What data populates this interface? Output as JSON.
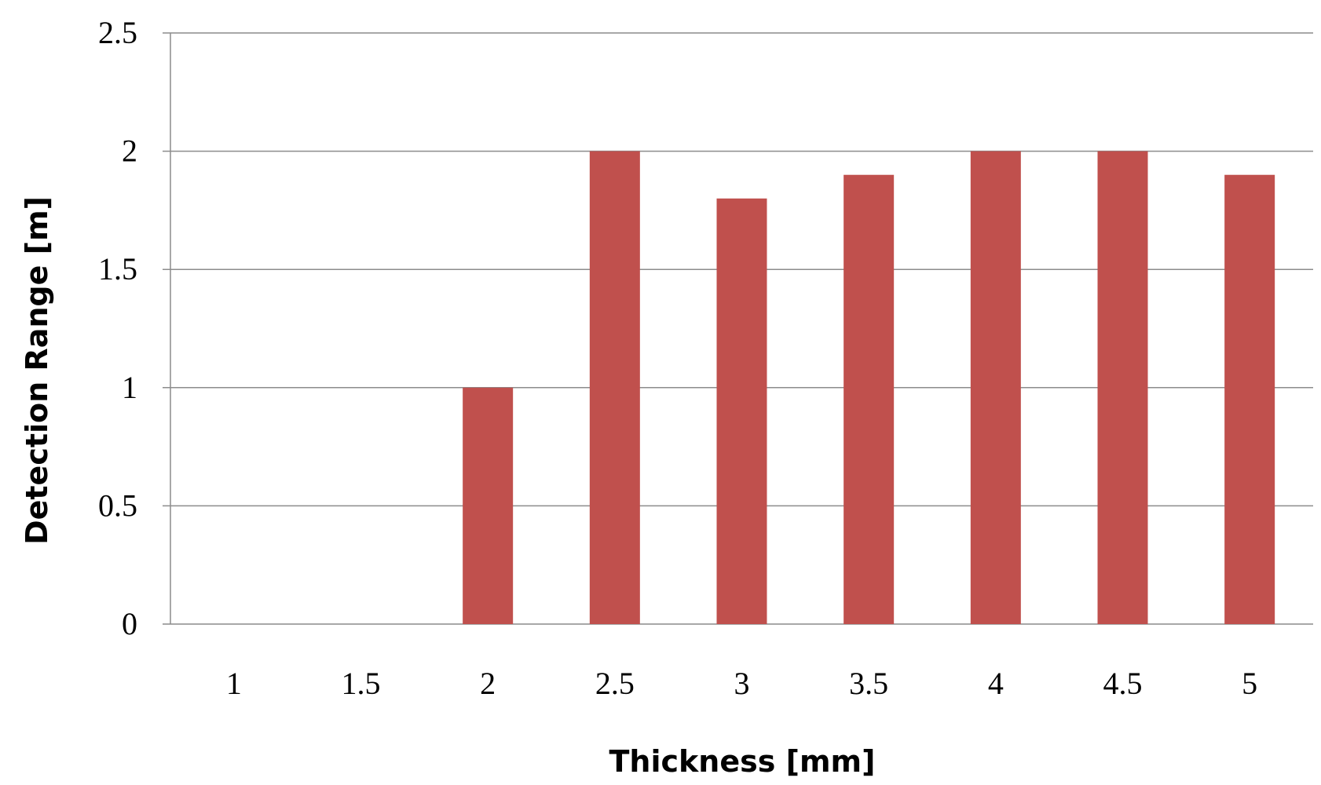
{
  "chart_data": {
    "type": "bar",
    "title": "",
    "xlabel": "Thickness [mm]",
    "ylabel": "Detection Range [m]",
    "categories": [
      "1",
      "1.5",
      "2",
      "2.5",
      "3",
      "3.5",
      "4",
      "4.5",
      "5"
    ],
    "values": [
      0,
      0,
      1.0,
      2.0,
      1.8,
      1.9,
      2.0,
      2.0,
      1.9
    ],
    "ylim": [
      0,
      2.5
    ],
    "yticks": [
      "0",
      "0.5",
      "1",
      "1.5",
      "2",
      "2.5"
    ],
    "grid": true,
    "legend": "none",
    "bar_color": "#c0504d"
  }
}
